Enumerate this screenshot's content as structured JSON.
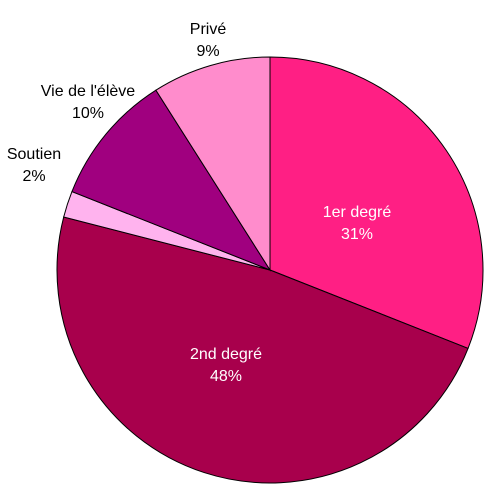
{
  "chart_data": {
    "type": "pie",
    "categories": [
      "1er degré",
      "2nd degré",
      "Soutien",
      "Vie de l'élève",
      "Privé"
    ],
    "values": [
      31,
      48,
      2,
      10,
      9
    ],
    "value_labels": [
      "31%",
      "48%",
      "2%",
      "10%",
      "9%"
    ],
    "colors": [
      "#ff1f84",
      "#a8004c",
      "#ffb3ee",
      "#a0007f",
      "#ff8ccc"
    ]
  }
}
